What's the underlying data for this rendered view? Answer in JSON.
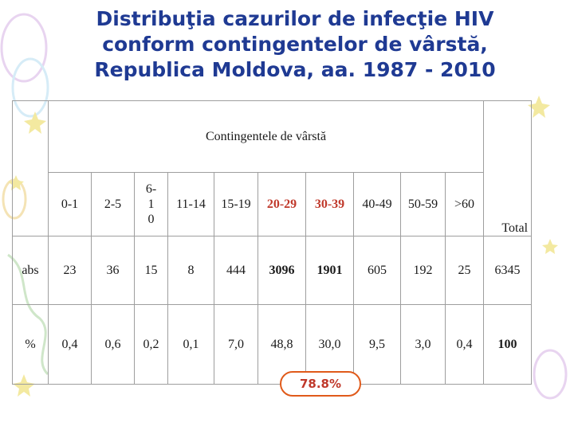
{
  "title": {
    "line1": "Distribuţia cazurilor de infecţie HIV",
    "line2": "conform contingentelor de vârstă,",
    "line3": "Republica Moldova, aa. 1987 - 2010"
  },
  "table": {
    "group_header": "Contingentele de vârstă",
    "total_header": "Total",
    "age_groups": [
      "0-1",
      "2-5",
      "6-\n1\n0",
      "11-14",
      "15-19",
      "20-29",
      "30-39",
      "40-49",
      "50-59",
      ">60"
    ],
    "rows": [
      {
        "label": "abs",
        "values": [
          "23",
          "36",
          "15",
          "8",
          "444",
          "3096",
          "1901",
          "605",
          "192",
          "25"
        ],
        "total": "6345"
      },
      {
        "label": "%",
        "values": [
          "0,4",
          "0,6",
          "0,2",
          "0,1",
          "7,0",
          "48,8",
          "30,0",
          "9,5",
          "3,0",
          "0,4"
        ],
        "total": "100"
      }
    ]
  },
  "highlight": {
    "text": "78.8%",
    "color": "#c0392b",
    "border_color": "#e05a1a"
  },
  "colors": {
    "title": "#1f3a93",
    "highlight_columns": "#c0392b"
  }
}
